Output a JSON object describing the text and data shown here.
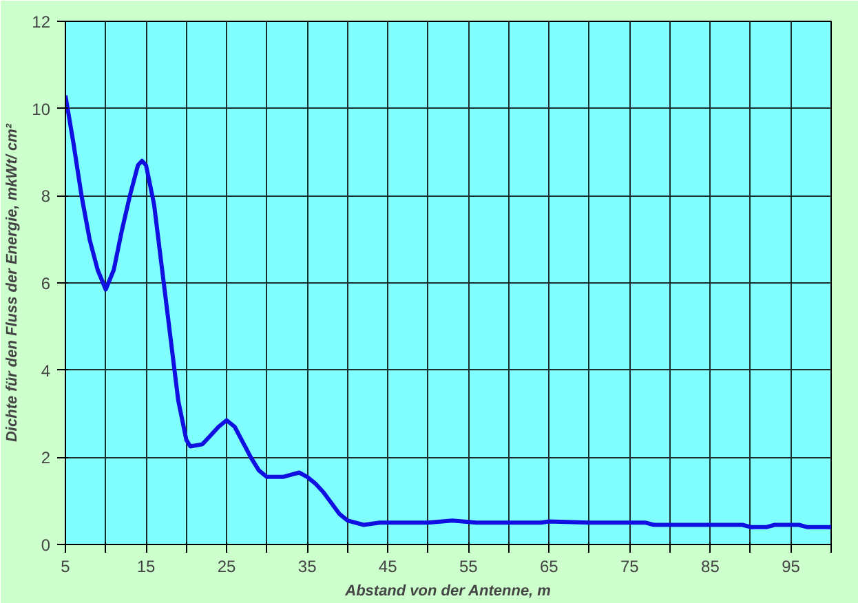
{
  "chart_data": {
    "type": "line",
    "xlabel": "Abstand von der Antenne, m",
    "ylabel": "Dichte für den Fluss der Energie, mkWt/ cm²",
    "x": [
      5,
      6,
      7,
      8,
      9,
      10,
      11,
      12,
      13,
      14,
      14.5,
      15,
      16,
      17,
      18,
      19,
      20,
      20.5,
      22,
      23,
      24,
      25,
      26,
      27,
      28,
      29,
      30,
      32,
      33,
      34,
      35,
      36,
      37,
      38,
      39,
      40,
      42,
      44,
      50,
      53,
      56,
      64,
      65,
      70,
      77,
      78,
      89,
      90,
      92,
      93,
      96,
      97,
      100
    ],
    "series": [
      {
        "color": "#1010e0",
        "values": [
          10.3,
          9.2,
          8.0,
          7.0,
          6.3,
          5.85,
          6.3,
          7.2,
          8.0,
          8.7,
          8.8,
          8.7,
          7.8,
          6.3,
          4.8,
          3.3,
          2.4,
          2.25,
          2.3,
          2.5,
          2.7,
          2.85,
          2.7,
          2.35,
          2.0,
          1.7,
          1.55,
          1.55,
          1.6,
          1.65,
          1.55,
          1.4,
          1.2,
          0.95,
          0.7,
          0.55,
          0.45,
          0.5,
          0.5,
          0.55,
          0.5,
          0.5,
          0.53,
          0.5,
          0.5,
          0.45,
          0.45,
          0.4,
          0.4,
          0.45,
          0.45,
          0.4,
          0.4
        ]
      }
    ],
    "xlim": [
      5,
      100
    ],
    "ylim": [
      0,
      12
    ],
    "xticks": [
      5,
      {
        "value": 10,
        "label": null
      },
      15,
      {
        "value": 20,
        "label": null
      },
      25,
      {
        "value": 30,
        "label": null
      },
      35,
      {
        "value": 40,
        "label": null
      },
      45,
      {
        "value": 50,
        "label": null
      },
      55,
      {
        "value": 60,
        "label": null
      },
      65,
      {
        "value": 70,
        "label": null
      },
      75,
      {
        "value": 80,
        "label": null
      },
      85,
      {
        "value": 90,
        "label": null
      },
      95,
      {
        "value": 100,
        "label": null
      }
    ],
    "yticks": [
      0,
      2,
      4,
      6,
      8,
      10,
      12
    ],
    "grid": true,
    "marker": "none",
    "line_style": "solid"
  }
}
